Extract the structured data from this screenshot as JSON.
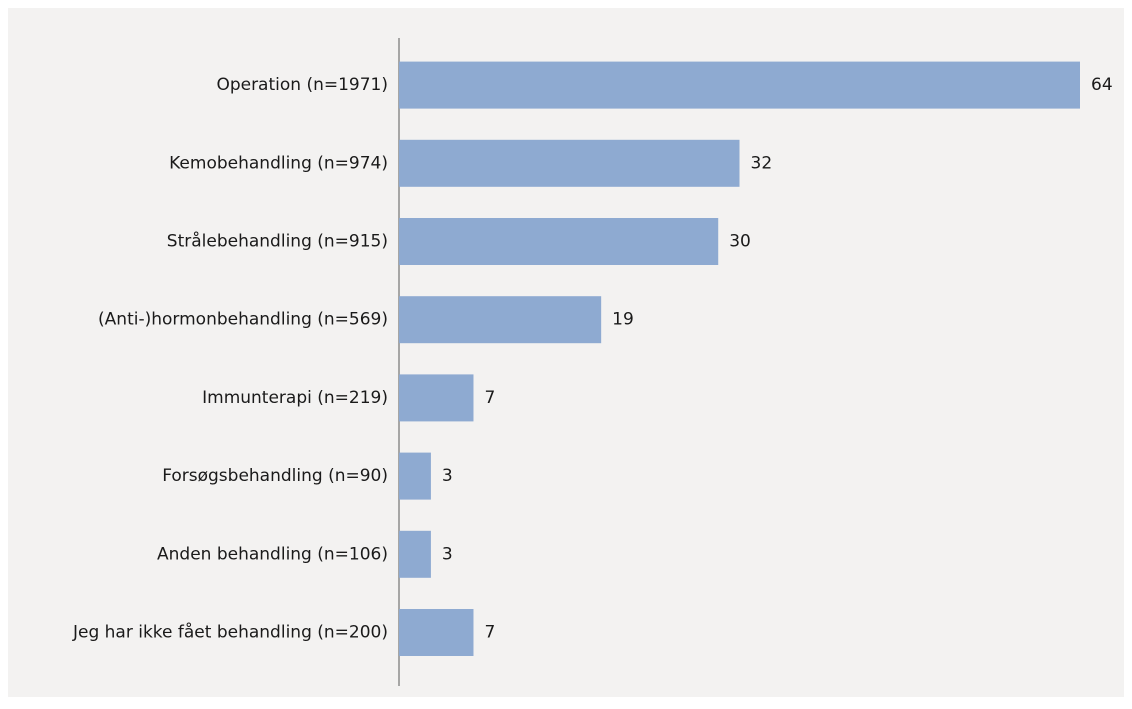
{
  "chart_data": {
    "type": "bar",
    "orientation": "horizontal",
    "categories": [
      "Operation (n=1971)",
      "Kemobehandling (n=974)",
      "Strålebehandling (n=915)",
      "(Anti-)hormonbehandling (n=569)",
      "Immunterapi (n=219)",
      "Forsøgsbehandling (n=90)",
      "Anden behandling (n=106)",
      "Jeg har ikke fået behandling (n=200)"
    ],
    "values": [
      64,
      32,
      30,
      19,
      7,
      3,
      3,
      7
    ],
    "color": "#8eaad1"
  }
}
